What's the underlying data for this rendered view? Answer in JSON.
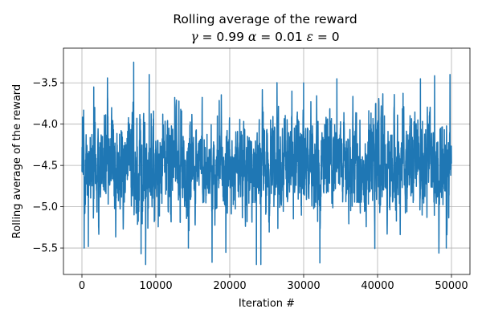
{
  "chart_data": {
    "type": "line",
    "title": "Rolling average of the reward",
    "subtitle": {
      "gamma_symbol": "γ",
      "gamma_text": " = 0.99 ",
      "alpha_symbol": "α",
      "alpha_text": " = 0.01 ",
      "epsilon_symbol": "ε",
      "epsilon_text": " = 0"
    },
    "xlabel": "Iteration #",
    "ylabel": "Rolling average of the reward",
    "xlim": [
      -2500,
      52500
    ],
    "ylim": [
      -5.82,
      -3.08
    ],
    "xticks": [
      0,
      10000,
      20000,
      30000,
      40000,
      50000
    ],
    "xtick_labels": [
      "0",
      "10000",
      "20000",
      "30000",
      "40000",
      "50000"
    ],
    "yticks": [
      -5.5,
      -5.0,
      -4.5,
      -4.0,
      -3.5
    ],
    "ytick_labels": [
      "−5.5",
      "−5.0",
      "−4.5",
      "−4.0",
      "−3.5"
    ],
    "grid": true,
    "colors": {
      "line": "#1f77b4",
      "grid": "#b0b0b0"
    },
    "series": [
      {
        "x_start": 0,
        "x_end": 50000,
        "noise": {
          "seed": 7,
          "points": 3000,
          "mean": -4.5,
          "std": 0.3,
          "ar": 0.6,
          "min": -5.7,
          "max": -3.25
        },
        "peaks": [
          {
            "x": 300,
            "y": -5.5
          },
          {
            "x": 1600,
            "y": -3.55
          },
          {
            "x": 7000,
            "y": -3.25
          },
          {
            "x": 8000,
            "y": -5.57
          },
          {
            "x": 9100,
            "y": -3.4
          },
          {
            "x": 14400,
            "y": -5.5
          },
          {
            "x": 23600,
            "y": -5.7
          },
          {
            "x": 24200,
            "y": -5.7
          },
          {
            "x": 30000,
            "y": -3.5
          },
          {
            "x": 32200,
            "y": -5.68
          },
          {
            "x": 34500,
            "y": -3.45
          },
          {
            "x": 45800,
            "y": -3.45
          },
          {
            "x": 49300,
            "y": -5.5
          },
          {
            "x": 49800,
            "y": -3.4
          }
        ]
      }
    ]
  }
}
